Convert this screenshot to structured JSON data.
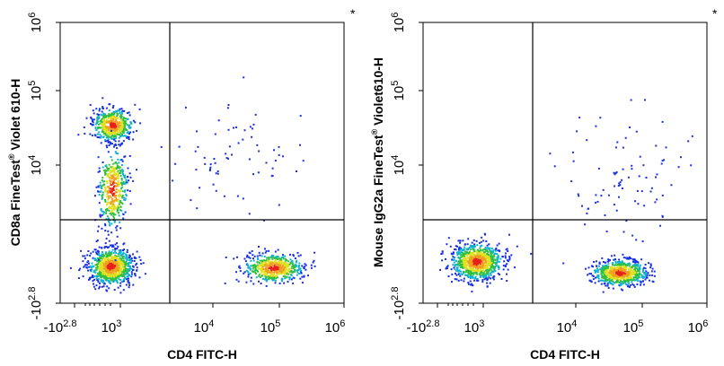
{
  "chart_data": [
    {
      "type": "scatter",
      "title": "",
      "corner_marker": "*",
      "xlabel": "CD4 FITC-H",
      "ylabel_parts": [
        "CD8a FineTest",
        "®",
        " Violet 610-H"
      ],
      "x_ticks": [
        {
          "base": "-10",
          "exp": "2.8"
        },
        {
          "base": "10",
          "exp": "3"
        },
        {
          "base": "10",
          "exp": "4"
        },
        {
          "base": "10",
          "exp": "5"
        },
        {
          "base": "10",
          "exp": "6"
        }
      ],
      "y_ticks": [
        {
          "base": "-10",
          "exp": "2.8"
        },
        {
          "base": "10",
          "exp": "4"
        },
        {
          "base": "10",
          "exp": "5"
        },
        {
          "base": "10",
          "exp": "6"
        }
      ],
      "x_scale": "biexponential",
      "y_scale": "biexponential",
      "quadrant_gate": {
        "x": 3000,
        "y": 2000
      },
      "populations": [
        {
          "name_hidden": "CD4-CD8+",
          "center_x": 700,
          "center_y": 35000,
          "count": 520
        },
        {
          "name_hidden": "CD4-CD8-",
          "center_x": 650,
          "center_y": 550,
          "count": 900
        },
        {
          "name_hidden": "CD4+CD8-",
          "center_x": 80000,
          "center_y": 500,
          "count": 560
        },
        {
          "name_hidden": "bridge",
          "center_x": 700,
          "center_y": 5000,
          "count": 420
        },
        {
          "name_hidden": "sparse-upper-right",
          "center_x": 25000,
          "center_y": 12000,
          "count": 70
        }
      ]
    },
    {
      "type": "scatter",
      "title": "",
      "corner_marker": "*",
      "xlabel": "CD4 FITC-H",
      "ylabel_parts": [
        "Mouse IgG2a FineTest",
        "®",
        " Violet610-H"
      ],
      "x_ticks": [
        {
          "base": "-10",
          "exp": "2.8"
        },
        {
          "base": "10",
          "exp": "3"
        },
        {
          "base": "10",
          "exp": "4"
        },
        {
          "base": "10",
          "exp": "5"
        },
        {
          "base": "10",
          "exp": "6"
        }
      ],
      "y_ticks": [
        {
          "base": "-10",
          "exp": "2.8"
        },
        {
          "base": "10",
          "exp": "4"
        },
        {
          "base": "10",
          "exp": "5"
        },
        {
          "base": "10",
          "exp": "6"
        }
      ],
      "x_scale": "biexponential",
      "y_scale": "biexponential",
      "quadrant_gate": {
        "x": 3000,
        "y": 2000
      },
      "populations": [
        {
          "name_hidden": "CD4-",
          "center_x": 750,
          "center_y": 700,
          "count": 900
        },
        {
          "name_hidden": "CD4+",
          "center_x": 45000,
          "center_y": 350,
          "count": 700
        },
        {
          "name_hidden": "sparse-upper-right",
          "center_x": 40000,
          "center_y": 8000,
          "count": 90
        }
      ]
    }
  ]
}
